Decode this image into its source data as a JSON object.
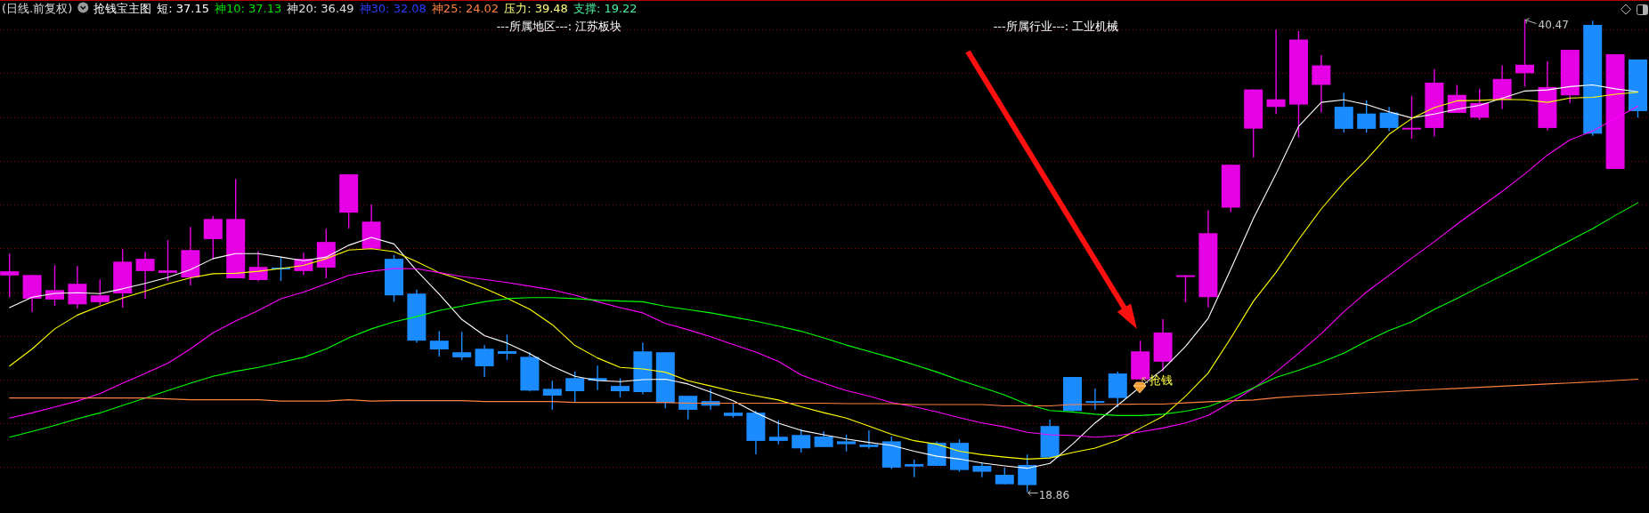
{
  "chart_data": {
    "type": "candlestick",
    "title": "(日线.前复权)",
    "subtitle": "抢钱宝主图",
    "grid": "y",
    "yticks": [
      {
        "value": 20,
        "label": null
      },
      {
        "value": 22,
        "label": null
      },
      {
        "value": 24,
        "label": null
      },
      {
        "value": 26,
        "label": null
      },
      {
        "value": 28,
        "label": null
      },
      {
        "value": 30,
        "label": null
      },
      {
        "value": 32,
        "label": null
      },
      {
        "value": 34,
        "label": null
      },
      {
        "value": 36,
        "label": null
      },
      {
        "value": 38,
        "label": null
      },
      {
        "value": 40,
        "label": null
      }
    ],
    "categories": [
      null,
      null,
      null,
      null,
      null,
      null,
      null,
      null,
      null,
      null,
      null,
      null,
      null,
      null,
      null,
      null,
      null,
      null,
      null,
      null,
      null,
      null,
      null,
      null,
      null,
      null,
      null,
      null,
      null,
      null,
      null,
      null,
      null,
      null,
      null,
      null,
      null,
      null,
      null,
      null,
      null,
      null,
      null,
      null,
      null,
      null,
      null,
      null,
      null,
      null,
      null,
      null,
      null,
      null,
      null,
      null,
      null,
      null,
      null,
      null,
      null,
      null,
      null,
      null,
      null,
      null,
      null,
      null,
      null,
      null,
      null,
      null,
      null
    ],
    "ohlc": [
      [
        28.76,
        29.76,
        27.77,
        28.95
      ],
      [
        27.7,
        28.78,
        27.09,
        28.78
      ],
      [
        27.66,
        29.23,
        27.37,
        28.09
      ],
      [
        27.44,
        29.19,
        27.25,
        28.38
      ],
      [
        27.54,
        28.58,
        27.4,
        27.85
      ],
      [
        27.94,
        29.96,
        27.29,
        29.39
      ],
      [
        28.96,
        29.84,
        27.7,
        29.52
      ],
      [
        28.88,
        30.37,
        28.51,
        28.99
      ],
      [
        28.67,
        30.98,
        28.31,
        29.92
      ],
      [
        30.42,
        31.47,
        29.49,
        31.34
      ],
      [
        28.63,
        33.17,
        28.63,
        31.34
      ],
      [
        28.55,
        29.87,
        28.49,
        29.15
      ],
      [
        29.12,
        29.6,
        28.51,
        29.12
      ],
      [
        28.96,
        29.8,
        28.78,
        29.52
      ],
      [
        29.12,
        30.9,
        28.63,
        30.29
      ],
      [
        31.63,
        33.38,
        30.91,
        33.38
      ],
      [
        29.98,
        32.0,
        29.98,
        31.22
      ],
      [
        29.52,
        29.7,
        27.56,
        27.85
      ],
      [
        27.93,
        28.11,
        25.69,
        25.78
      ],
      [
        25.78,
        26.21,
        25.06,
        25.38
      ],
      [
        25.25,
        26.18,
        24.9,
        25.02
      ],
      [
        25.41,
        25.57,
        24.12,
        24.61
      ],
      [
        25.3,
        26.06,
        24.9,
        25.18
      ],
      [
        25.04,
        25.25,
        23.46,
        23.5
      ],
      [
        23.58,
        23.95,
        22.62,
        23.27
      ],
      [
        24.07,
        24.38,
        22.97,
        23.47
      ],
      [
        24.07,
        24.64,
        23.52,
        23.95
      ],
      [
        23.71,
        24.06,
        23.19,
        23.47
      ],
      [
        25.29,
        25.69,
        23.33,
        23.43
      ],
      [
        25.25,
        25.25,
        22.69,
        22.93
      ],
      [
        23.26,
        23.26,
        22.18,
        22.62
      ],
      [
        23.02,
        23.58,
        22.62,
        22.81
      ],
      [
        22.49,
        22.93,
        22.26,
        22.34
      ],
      [
        22.49,
        22.58,
        20.59,
        21.2
      ],
      [
        21.39,
        22.14,
        21.04,
        21.2
      ],
      [
        21.47,
        21.74,
        20.67,
        20.86
      ],
      [
        21.4,
        21.63,
        20.92,
        20.92
      ],
      [
        21.18,
        21.48,
        20.72,
        21.05
      ],
      [
        21.03,
        21.68,
        20.84,
        20.92
      ],
      [
        21.18,
        21.4,
        19.92,
        19.98
      ],
      [
        20.14,
        20.34,
        19.54,
        20.03
      ],
      [
        21.11,
        21.18,
        20.06,
        20.06
      ],
      [
        21.11,
        21.27,
        19.79,
        19.87
      ],
      [
        20.06,
        20.22,
        19.54,
        19.79
      ],
      [
        19.65,
        19.98,
        19.22,
        19.22
      ],
      [
        20.1,
        20.58,
        18.86,
        19.18
      ],
      [
        21.88,
        22.18,
        20.44,
        20.44
      ],
      [
        24.12,
        24.12,
        22.49,
        22.57
      ],
      [
        23.02,
        23.59,
        22.63,
        22.95
      ],
      [
        24.28,
        24.37,
        22.74,
        23.16
      ],
      [
        24.01,
        25.78,
        24.01,
        25.29
      ],
      [
        24.82,
        26.76,
        24.39,
        26.15
      ],
      [
        28.77,
        28.77,
        27.54,
        28.77
      ],
      [
        27.77,
        31.74,
        27.3,
        30.69
      ],
      [
        31.86,
        33.82,
        31.65,
        33.82
      ],
      [
        35.47,
        37.26,
        34.15,
        37.26
      ],
      [
        36.46,
        40.0,
        36.14,
        36.81
      ],
      [
        36.57,
        39.93,
        35.07,
        39.54
      ],
      [
        37.47,
        38.84,
        36.21,
        38.36
      ],
      [
        36.47,
        37.1,
        35.29,
        35.46
      ],
      [
        36.16,
        36.76,
        35.29,
        35.46
      ],
      [
        36.2,
        36.46,
        35.36,
        35.5
      ],
      [
        35.46,
        36.97,
        35.01,
        35.51
      ],
      [
        35.5,
        38.19,
        35.11,
        37.57
      ],
      [
        36.19,
        37.47,
        36.19,
        37.01
      ],
      [
        35.97,
        37.29,
        35.86,
        36.64
      ],
      [
        36.79,
        38.36,
        36.36,
        37.74
      ],
      [
        38.0,
        40.47,
        37.39,
        38.39
      ],
      [
        35.5,
        38.54,
        35.39,
        37.37
      ],
      [
        36.99,
        39.07,
        36.64,
        39.07
      ],
      [
        40.21,
        40.4,
        35.14,
        35.24
      ],
      [
        33.63,
        38.87,
        33.63,
        38.87
      ],
      [
        38.63,
        38.63,
        35.97,
        36.27
      ]
    ],
    "colors": [
      "#e600e6",
      "#e600e6",
      "#e600e6",
      "#e600e6",
      "#e600e6",
      "#e600e6",
      "#e600e6",
      "#e600e6",
      "#e600e6",
      "#e600e6",
      "#e600e6",
      "#e600e6",
      "#1a8cff",
      "#e600e6",
      "#e600e6",
      "#e600e6",
      "#e600e6",
      "#1a8cff",
      "#1a8cff",
      "#1a8cff",
      "#1a8cff",
      "#1a8cff",
      "#1a8cff",
      "#1a8cff",
      "#1a8cff",
      "#1a8cff",
      "#1a8cff",
      "#1a8cff",
      "#1a8cff",
      "#1a8cff",
      "#1a8cff",
      "#1a8cff",
      "#1a8cff",
      "#1a8cff",
      "#1a8cff",
      "#1a8cff",
      "#1a8cff",
      "#1a8cff",
      "#1a8cff",
      "#1a8cff",
      "#1a8cff",
      "#1a8cff",
      "#1a8cff",
      "#1a8cff",
      "#1a8cff",
      "#1a8cff",
      "#1a8cff",
      "#1a8cff",
      "#1a8cff",
      "#1a8cff",
      "#e600e6",
      "#e600e6",
      "#e600e6",
      "#e600e6",
      "#e600e6",
      "#e600e6",
      "#e600e6",
      "#e600e6",
      "#e600e6",
      "#1a8cff",
      "#1a8cff",
      "#1a8cff",
      "#e600e6",
      "#e600e6",
      "#e600e6",
      "#e600e6",
      "#e600e6",
      "#e600e6",
      "#e600e6",
      "#e600e6",
      "#1a8cff",
      "#e600e6",
      "#1a8cff"
    ],
    "series": [
      {
        "type": "line",
        "color": "#ffffff",
        "values": [
          27.29,
          27.77,
          27.94,
          27.97,
          27.93,
          28.15,
          28.4,
          28.67,
          29.03,
          29.53,
          29.76,
          29.76,
          29.6,
          29.43,
          29.6,
          30.14,
          30.5,
          30.2,
          28.98,
          27.9,
          26.75,
          26.01,
          25.67,
          25.19,
          24.61,
          24.15,
          23.96,
          23.91,
          24.0,
          24.02,
          23.8,
          23.43,
          23.03,
          22.49,
          22.01,
          21.68,
          21.48,
          21.29,
          21.13,
          20.99,
          20.73,
          20.5,
          20.37,
          20.19,
          20.06,
          19.95,
          20.17,
          21.05,
          22.02,
          22.83,
          23.67,
          24.47,
          25.52,
          26.8,
          29.05,
          31.36,
          33.4,
          35.57,
          36.67,
          36.79,
          36.57,
          36.24,
          35.96,
          36.14,
          36.36,
          36.53,
          36.86,
          37.19,
          37.24,
          37.39,
          37.47,
          37.29,
          37.15
        ]
      },
      {
        "type": "line",
        "color": "#ffff00",
        "values": [
          24.62,
          25.4,
          26.32,
          26.95,
          27.36,
          27.73,
          28.04,
          28.38,
          28.65,
          28.84,
          28.86,
          28.95,
          29.08,
          29.22,
          29.53,
          29.92,
          29.98,
          29.85,
          29.39,
          28.89,
          28.56,
          28.17,
          27.72,
          27.22,
          26.51,
          25.56,
          24.99,
          24.56,
          24.49,
          24.34,
          23.95,
          23.71,
          23.46,
          23.26,
          23.07,
          22.76,
          22.49,
          22.24,
          21.88,
          21.5,
          21.21,
          21.05,
          20.73,
          20.57,
          20.46,
          20.37,
          20.42,
          20.67,
          20.87,
          21.23,
          21.78,
          22.32,
          23.24,
          24.3,
          25.9,
          27.58,
          28.9,
          30.4,
          31.8,
          33.0,
          34.05,
          35.21,
          35.93,
          36.43,
          36.74,
          36.76,
          36.81,
          36.79,
          36.67,
          36.87,
          36.9,
          37.04,
          37.13
        ]
      },
      {
        "type": "line",
        "color": "#ff00ff",
        "values": [
          22.24,
          22.48,
          22.75,
          23.02,
          23.36,
          23.84,
          24.28,
          24.75,
          25.4,
          26.14,
          26.68,
          27.16,
          27.7,
          28.0,
          28.38,
          28.76,
          28.95,
          29.08,
          29.07,
          28.89,
          28.71,
          28.58,
          28.44,
          28.27,
          28.1,
          27.86,
          27.56,
          27.29,
          27.05,
          26.57,
          26.28,
          25.96,
          25.6,
          25.26,
          24.83,
          24.21,
          23.84,
          23.5,
          23.25,
          22.95,
          22.76,
          22.53,
          22.26,
          22.02,
          21.84,
          21.59,
          21.48,
          21.45,
          21.37,
          21.44,
          21.61,
          21.79,
          22.02,
          22.36,
          22.95,
          23.6,
          24.35,
          25.2,
          26.1,
          27.1,
          28.0,
          28.77,
          29.55,
          30.3,
          31.1,
          31.85,
          32.6,
          33.4,
          34.26,
          34.96,
          35.36,
          35.93,
          36.49
        ]
      },
      {
        "type": "line",
        "color": "#00ff00",
        "values": [
          21.37,
          21.63,
          21.91,
          22.21,
          22.48,
          22.82,
          23.16,
          23.5,
          23.84,
          24.15,
          24.38,
          24.56,
          24.79,
          25.02,
          25.4,
          25.91,
          26.32,
          26.64,
          26.88,
          27.16,
          27.36,
          27.56,
          27.7,
          27.75,
          27.75,
          27.7,
          27.63,
          27.59,
          27.56,
          27.35,
          27.2,
          27.05,
          26.86,
          26.67,
          26.45,
          26.21,
          25.91,
          25.58,
          25.29,
          25.0,
          24.68,
          24.35,
          23.98,
          23.64,
          23.3,
          22.87,
          22.59,
          22.52,
          22.42,
          22.36,
          22.36,
          22.42,
          22.56,
          22.76,
          23.16,
          23.62,
          24.1,
          24.43,
          24.79,
          25.21,
          25.76,
          26.24,
          26.64,
          27.21,
          27.71,
          28.24,
          28.75,
          29.28,
          29.82,
          30.36,
          30.9,
          31.5,
          32.08
        ]
      },
      {
        "type": "line",
        "color": "#ff8040",
        "values": [
          23.16,
          23.16,
          23.16,
          23.16,
          23.16,
          23.16,
          23.16,
          23.12,
          23.08,
          23.08,
          23.08,
          23.08,
          23.02,
          23.02,
          23.02,
          23.08,
          23.02,
          23.04,
          23.04,
          23.04,
          23.04,
          23.0,
          23.0,
          23.0,
          23.0,
          22.96,
          22.96,
          22.96,
          22.96,
          22.96,
          22.92,
          22.92,
          22.92,
          22.92,
          22.92,
          22.92,
          22.92,
          22.9,
          22.9,
          22.9,
          22.86,
          22.86,
          22.86,
          22.86,
          22.8,
          22.8,
          22.8,
          22.86,
          22.86,
          22.87,
          22.88,
          22.88,
          22.94,
          22.99,
          23.03,
          23.07,
          23.17,
          23.25,
          23.3,
          23.35,
          23.4,
          23.45,
          23.5,
          23.55,
          23.6,
          23.65,
          23.7,
          23.75,
          23.8,
          23.85,
          23.9,
          23.96,
          24.02
        ]
      }
    ],
    "annotations": [
      "---所属地区---: 江苏板块",
      "---所属行业---: 工业机械",
      "短: 37.15",
      "神10: 37.13",
      "神20: 36.49",
      "神30: 32.08",
      "神25: 24.02",
      "压力: 39.48",
      "支撑: 19.22",
      "抢钱",
      "40.47",
      "18.86"
    ]
  }
}
